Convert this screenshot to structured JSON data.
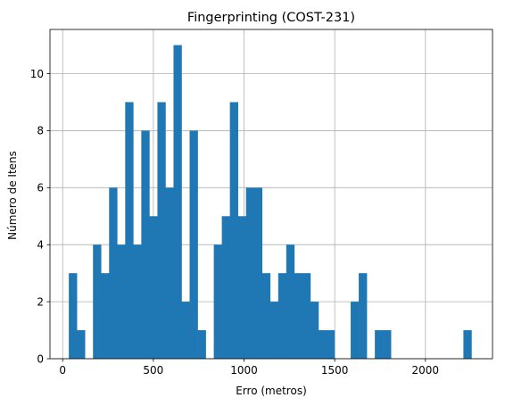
{
  "chart_data": {
    "type": "bar",
    "title": "Fingerprinting (COST-231)",
    "xlabel": "Erro (metros)",
    "ylabel": "Número de Itens",
    "xlim": [
      -70,
      2370
    ],
    "ylim": [
      0,
      11.55
    ],
    "x_ticks": [
      0,
      500,
      1000,
      1500,
      2000
    ],
    "y_ticks": [
      0,
      2,
      4,
      6,
      8,
      10
    ],
    "grid": true,
    "bar_color": "#1f77b4",
    "bin_start": 34,
    "bin_width": 44.4,
    "counts": [
      3,
      1,
      0,
      4,
      3,
      6,
      4,
      9,
      4,
      8,
      5,
      9,
      6,
      11,
      2,
      8,
      1,
      0,
      4,
      5,
      9,
      5,
      6,
      6,
      3,
      2,
      3,
      4,
      3,
      3,
      2,
      1,
      1,
      0,
      0,
      2,
      3,
      0,
      1,
      1,
      0,
      0,
      0,
      0,
      0,
      0,
      0,
      0,
      0,
      1
    ]
  }
}
